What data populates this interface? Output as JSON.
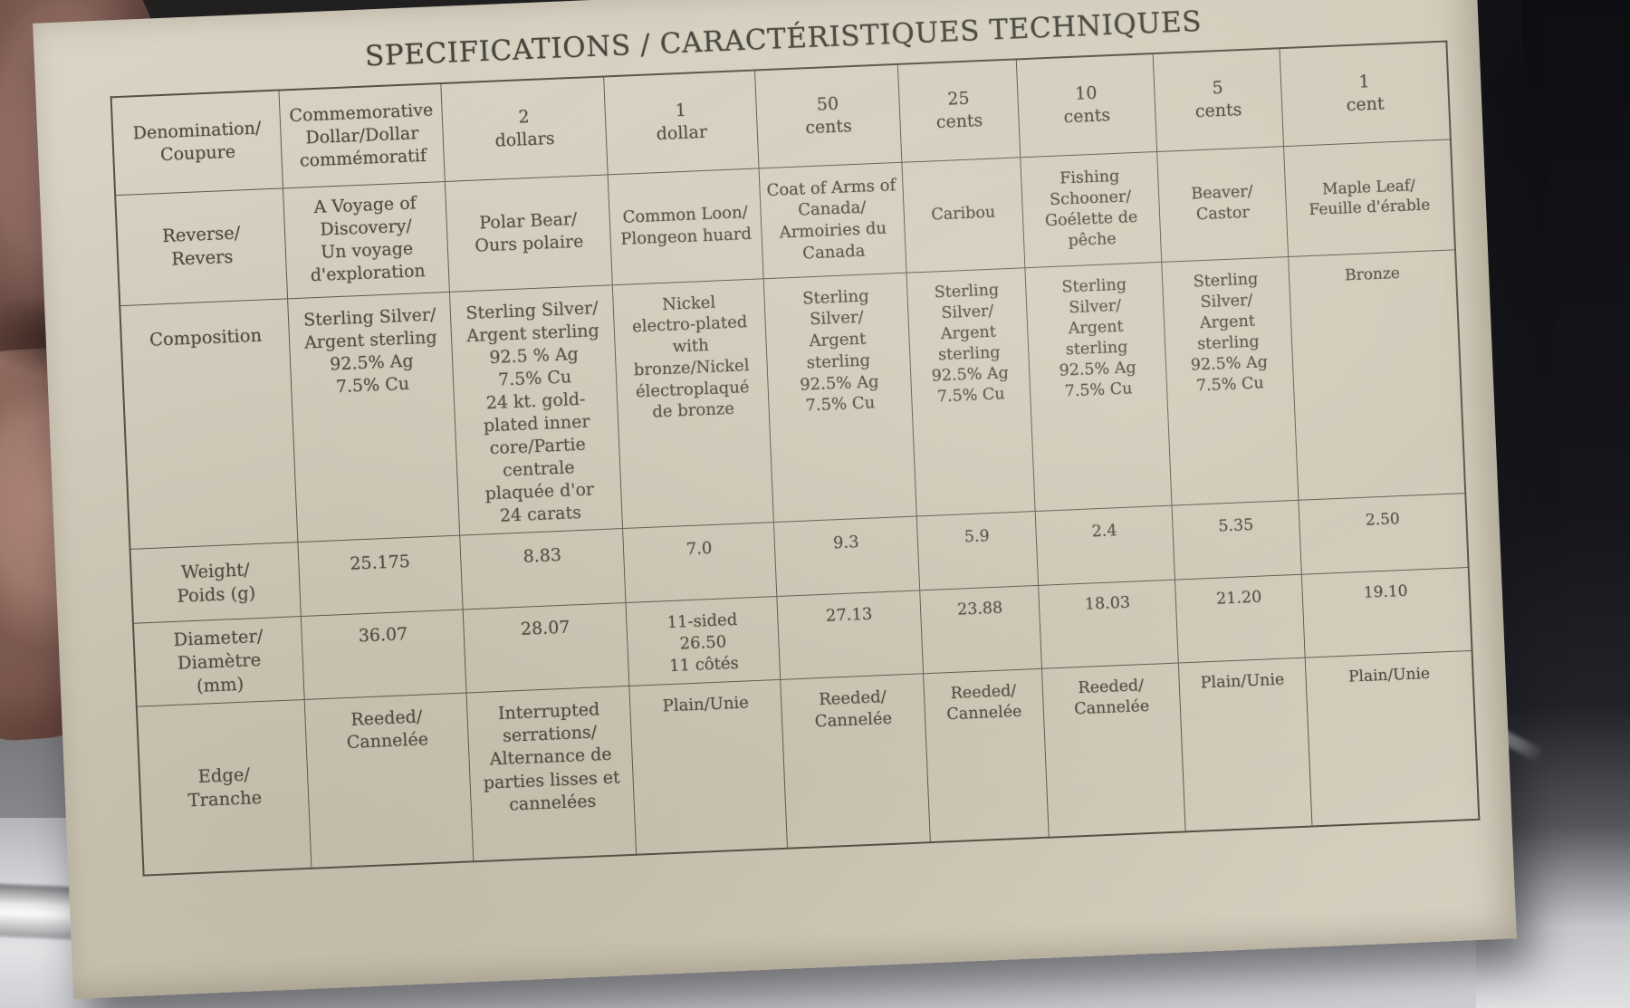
{
  "title": "SPECIFICATIONS / CARACTÉRISTIQUES TECHNIQUES",
  "table": {
    "headers": [
      "Denomination/\nCoupure",
      "Commemorative\nDollar/Dollar\ncommémoratif",
      "2\ndollars",
      "1\ndollar",
      "50\ncents",
      "25\ncents",
      "10\ncents",
      "5\ncents",
      "1\ncent"
    ],
    "rows": [
      {
        "label": "Reverse/\nRevers",
        "cells": [
          "A Voyage of\nDiscovery/\nUn voyage\nd'exploration",
          "Polar Bear/\nOurs polaire",
          "Common Loon/\nPlongeon huard",
          "Coat of Arms of\nCanada/\nArmoiries du\nCanada",
          "Caribou",
          "Fishing\nSchooner/\nGoélette de\npêche",
          "Beaver/\nCastor",
          "Maple Leaf/\nFeuille d'érable"
        ]
      },
      {
        "label": "Composition",
        "cells": [
          "Sterling Silver/\nArgent sterling\n92.5% Ag\n7.5% Cu",
          "Sterling Silver/\nArgent sterling\n92.5 % Ag\n7.5% Cu\n24 kt. gold-\nplated inner\ncore/Partie\ncentrale\nplaquée d'or\n24 carats",
          "Nickel\nelectro-plated\nwith\nbronze/Nickel\nélectroplaqué\nde bronze",
          "Sterling\nSilver/\nArgent\nsterling\n92.5% Ag\n7.5% Cu",
          "Sterling\nSilver/\nArgent\nsterling\n92.5% Ag\n7.5% Cu",
          "Sterling\nSilver/\nArgent\nsterling\n92.5% Ag\n7.5% Cu",
          "Sterling\nSilver/\nArgent\nsterling\n92.5% Ag\n7.5% Cu",
          "Bronze"
        ]
      },
      {
        "label": "Weight/\nPoids (g)",
        "cells": [
          "25.175",
          "8.83",
          "7.0",
          "9.3",
          "5.9",
          "2.4",
          "5.35",
          "2.50"
        ]
      },
      {
        "label": "Diameter/\nDiamètre\n(mm)",
        "cells": [
          "36.07",
          "28.07",
          "11-sided\n26.50\n11 côtés",
          "27.13",
          "23.88",
          "18.03",
          "21.20",
          "19.10"
        ]
      },
      {
        "label": "Edge/\nTranche",
        "cells": [
          "Reeded/\nCannelée",
          "Interrupted\nserrations/\nAlternance de\nparties lisses et\ncannelées",
          "Plain/Unie",
          "Reeded/\nCannelée",
          "Reeded/\nCannelée",
          "Reeded/\nCannelée",
          "Plain/Unie",
          "Plain/Unie"
        ]
      }
    ]
  }
}
